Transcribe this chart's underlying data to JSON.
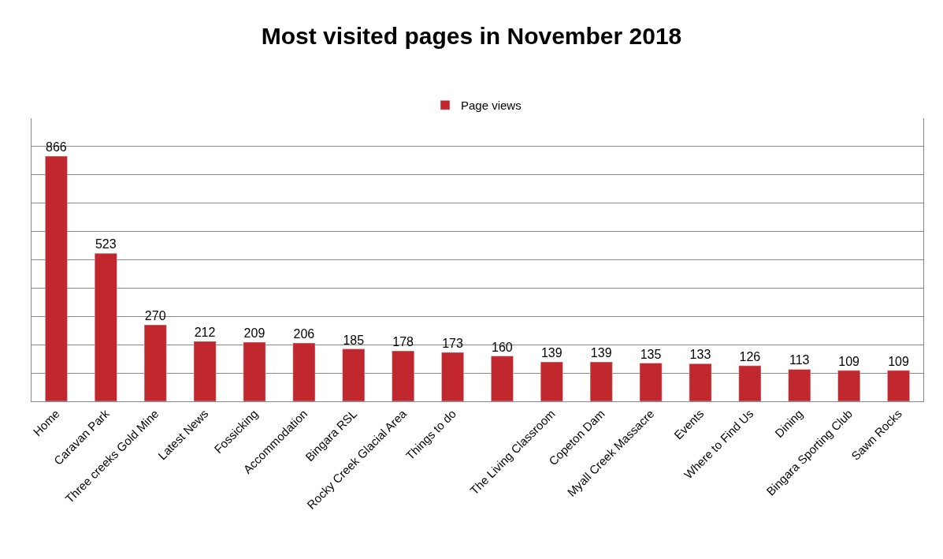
{
  "chart_data": {
    "type": "bar",
    "title": "Most visited pages in November 2018",
    "categories": [
      "Home",
      "Caravan Park",
      "Three creeks Gold Mine",
      "Latest News",
      "Fossicking",
      "Accommodation",
      "Bingara RSL",
      "Rocky Creek Glacial Area",
      "Things to do",
      null,
      "The Living Classroom",
      "Copeton Dam",
      "Myall Creek Massacre",
      "Events",
      "Where to Find Us",
      "Dining",
      "Bingara Sporting Club",
      "Sawn Rocks"
    ],
    "series": [
      {
        "name": "Page views",
        "color": "#c0282d",
        "values": [
          866,
          523,
          270,
          212,
          209,
          206,
          185,
          178,
          173,
          160,
          139,
          139,
          135,
          133,
          126,
          113,
          109,
          109
        ]
      }
    ],
    "ylim": [
      0,
      1000
    ],
    "yticks": [
      {
        "value": 0,
        "label": null
      },
      {
        "value": 100,
        "label": null
      },
      {
        "value": 200,
        "label": null
      },
      {
        "value": 300,
        "label": null
      },
      {
        "value": 400,
        "label": null
      },
      {
        "value": 500,
        "label": null
      },
      {
        "value": 600,
        "label": null
      },
      {
        "value": 700,
        "label": null
      },
      {
        "value": 800,
        "label": null
      },
      {
        "value": 900,
        "label": null
      }
    ],
    "grid": "y",
    "legend": "top",
    "data_labels": true,
    "tick_labels": "x"
  }
}
